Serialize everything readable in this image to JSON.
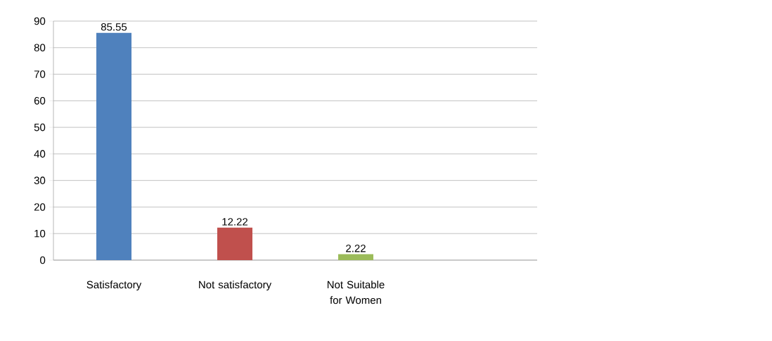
{
  "chart_data": {
    "type": "bar",
    "categories": [
      "Satisfactory",
      "Not satisfactory",
      "Not Suitable for Women",
      null
    ],
    "values": [
      85.55,
      12.22,
      2.22,
      null
    ],
    "colors": [
      "#4f81bd",
      "#c0504d",
      "#9bbb59",
      "#8064a2"
    ],
    "ylim": [
      0,
      90
    ],
    "yticks": [
      0,
      10,
      20,
      30,
      40,
      50,
      60,
      70,
      80,
      90
    ],
    "grid": "y",
    "data_labels": true
  }
}
